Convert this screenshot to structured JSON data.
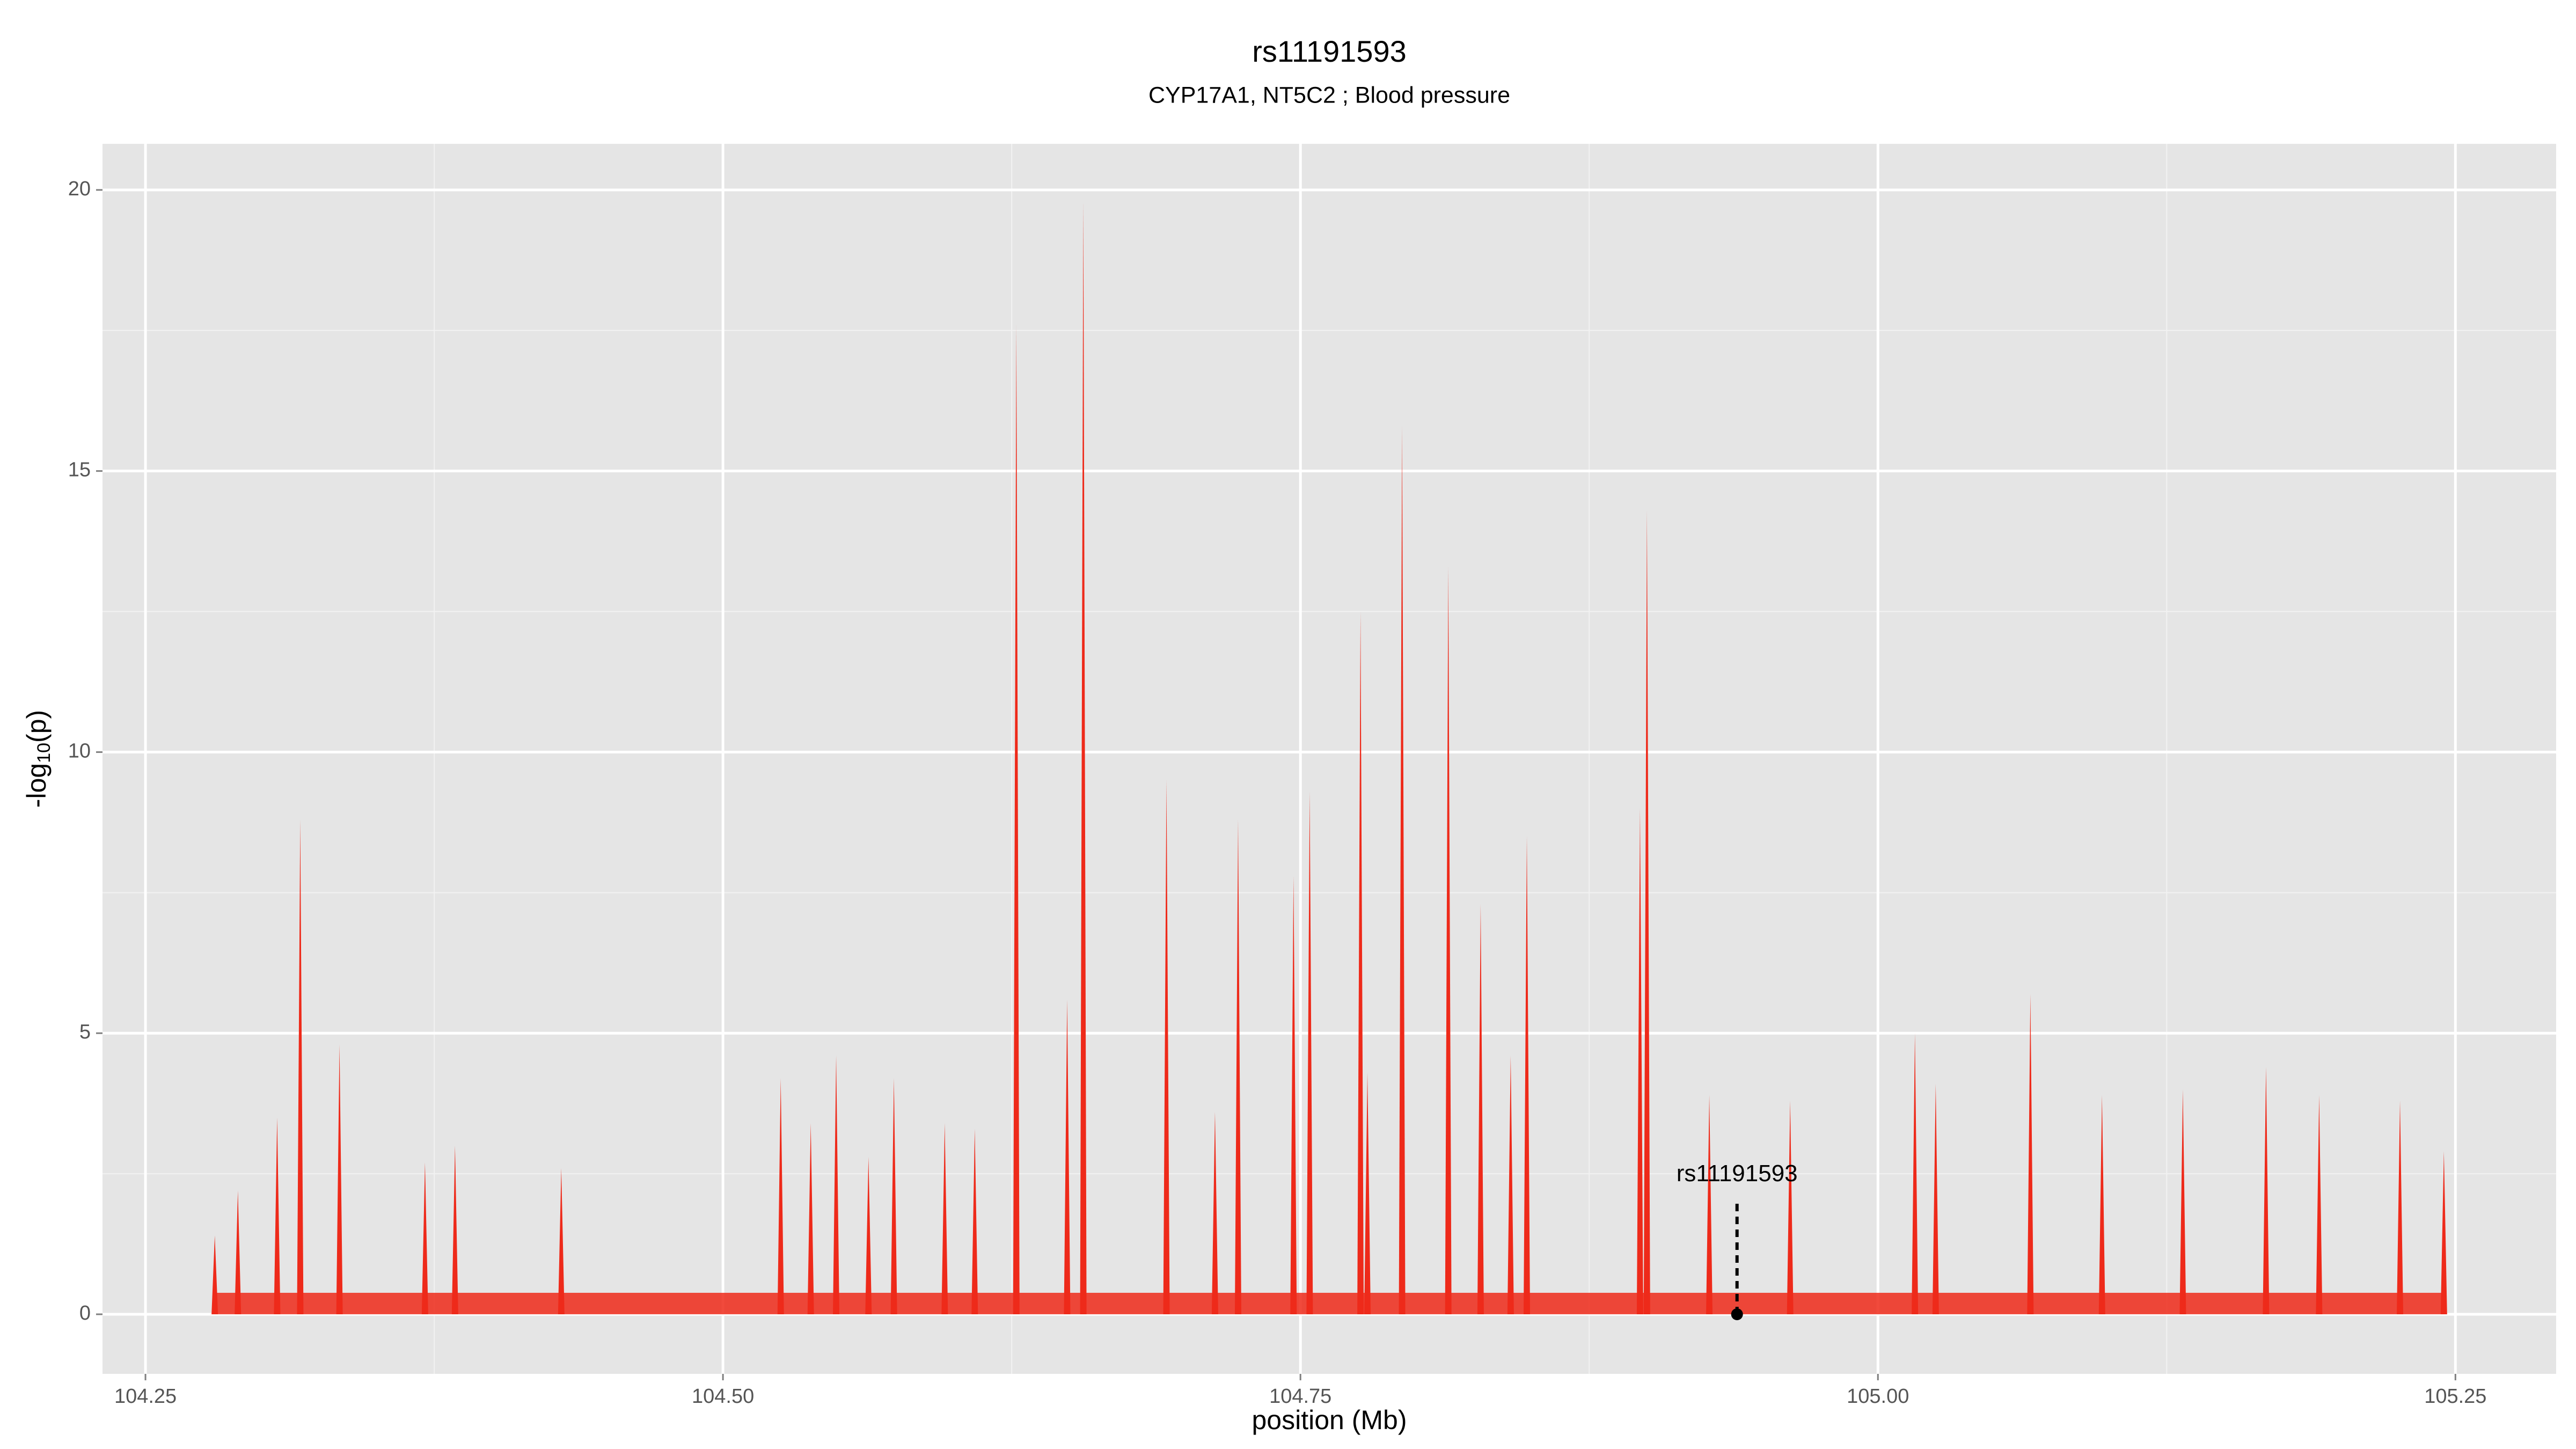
{
  "chart_data": {
    "type": "spike",
    "title": "rs11191593",
    "subtitle": "CYP17A1, NT5C2 ; Blood pressure",
    "xlabel": "position (Mb)",
    "ylabel": [
      "-log",
      "10",
      "(p)"
    ],
    "xlim": [
      104.2314,
      105.2936
    ],
    "ylim": [
      -1.06,
      20.82
    ],
    "xticks": [
      104.25,
      {
        "value": 104.5,
        "label": "104.50"
      },
      104.75,
      {
        "value": 105,
        "label": "105.00"
      },
      105.25
    ],
    "yticks": [
      0,
      5,
      10,
      15,
      20
    ],
    "grid": true,
    "series": [
      {
        "color": "#ee2a1a",
        "x": [
          104.28,
          104.29,
          104.307,
          104.317,
          104.334,
          104.371,
          104.384,
          104.43,
          104.525,
          104.538,
          104.549,
          104.563,
          104.574,
          104.596,
          104.609,
          104.627,
          104.649,
          104.656,
          104.692,
          104.713,
          104.723,
          104.747,
          104.754,
          104.776,
          104.779,
          104.794,
          104.814,
          104.828,
          104.841,
          104.848,
          104.897,
          104.9,
          104.927,
          104.962,
          105.016,
          105.025,
          105.066,
          105.097,
          105.132,
          105.168,
          105.191,
          105.226,
          105.245
        ],
        "values": [
          1.4,
          2.2,
          3.5,
          8.8,
          4.8,
          2.7,
          3.0,
          2.6,
          4.2,
          3.4,
          4.6,
          2.8,
          4.2,
          3.4,
          3.3,
          17.6,
          5.6,
          19.8,
          9.5,
          3.6,
          8.8,
          7.8,
          9.3,
          12.5,
          4.3,
          15.8,
          13.3,
          7.3,
          4.6,
          8.5,
          9.0,
          14.3,
          3.9,
          3.8,
          5.0,
          4.1,
          5.7,
          3.9,
          4.0,
          4.4,
          3.9,
          3.8,
          2.9
        ]
      }
    ],
    "annotation": {
      "label": "rs11191593",
      "x": 104.939,
      "y": 0,
      "y_end": 2.0
    }
  }
}
